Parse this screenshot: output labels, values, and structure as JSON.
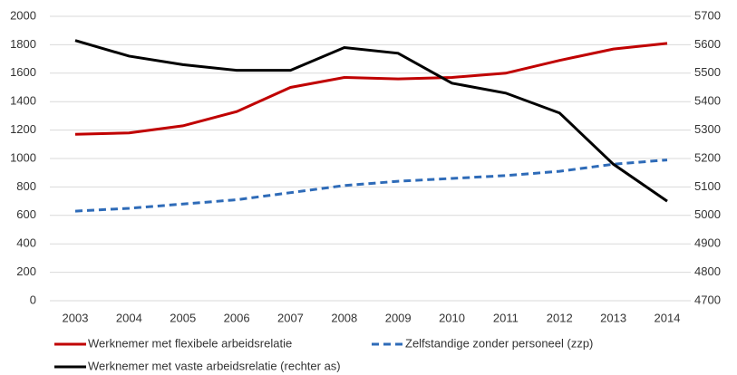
{
  "chart_data": {
    "type": "line",
    "categories": [
      "2003",
      "2004",
      "2005",
      "2006",
      "2007",
      "2008",
      "2009",
      "2010",
      "2011",
      "2012",
      "2013",
      "2014"
    ],
    "series": [
      {
        "name": "Werknemer met flexibele arbeidsrelatie",
        "color": "#c00000",
        "dash": "solid",
        "values": [
          1170,
          1180,
          1230,
          1330,
          1500,
          1570,
          1560,
          1570,
          1600,
          1690,
          1770,
          1810
        ]
      },
      {
        "name": "Zelfstandige zonder personeel (zzp)",
        "color": "#2e6bb8",
        "dash": "dashed",
        "values": [
          630,
          650,
          680,
          710,
          760,
          810,
          840,
          860,
          880,
          910,
          960,
          990
        ]
      },
      {
        "name": "Werknemer met vaste arbeidsrelatie (rechter as)",
        "color": "#000000",
        "dash": "solid",
        "axis": "y2",
        "values": [
          5615,
          5560,
          5530,
          5510,
          5510,
          5590,
          5570,
          5465,
          5430,
          5360,
          5180,
          5050
        ]
      }
    ],
    "ylim": [
      0,
      2000
    ],
    "yticks": [
      0,
      200,
      400,
      600,
      800,
      1000,
      1200,
      1400,
      1600,
      1800,
      2000
    ],
    "y2lim": [
      4700,
      5700
    ],
    "y2ticks": [
      4700,
      4800,
      4900,
      5000,
      5100,
      5200,
      5300,
      5400,
      5500,
      5600,
      5700
    ],
    "grid": true
  }
}
